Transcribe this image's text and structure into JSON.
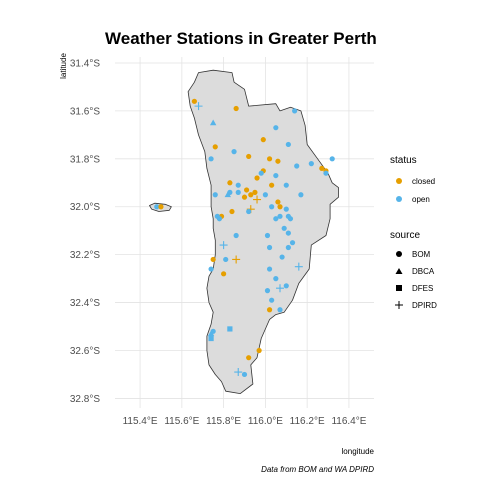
{
  "chart_data": {
    "type": "scatter",
    "title": "Weather Stations in Greater Perth",
    "xlabel": "longitude",
    "ylabel": "latitude",
    "caption": "Data from BOM and WA DPIRD",
    "xlim": [
      115.28,
      116.52
    ],
    "ylim": [
      -32.84,
      -31.375
    ],
    "x_ticks": [
      115.4,
      115.6,
      115.8,
      116.0,
      116.2,
      116.4
    ],
    "x_tick_labels": [
      "115.4°E",
      "115.6°E",
      "115.8°E",
      "116.0°E",
      "116.2°E",
      "116.4°E"
    ],
    "y_ticks": [
      -31.4,
      -31.6,
      -31.8,
      -32.0,
      -32.2,
      -32.4,
      -32.6,
      -32.8
    ],
    "y_tick_labels": [
      "31.4°S",
      "31.6°S",
      "31.8°S",
      "32.0°S",
      "32.2°S",
      "32.4°S",
      "32.6°S",
      "32.8°S"
    ],
    "grid": true,
    "colors": {
      "closed": "#E69F00",
      "open": "#56B4E9",
      "land": "#dcdcdc",
      "coast": "#333333"
    },
    "legends": [
      {
        "title": "status",
        "entries": [
          {
            "label": "closed",
            "color": "closed"
          },
          {
            "label": "open",
            "color": "open"
          }
        ]
      },
      {
        "title": "source",
        "entries": [
          {
            "label": "BOM",
            "shape": "circle"
          },
          {
            "label": "DBCA",
            "shape": "triangle"
          },
          {
            "label": "DFES",
            "shape": "square"
          },
          {
            "label": "DPIRD",
            "shape": "plus"
          }
        ]
      }
    ],
    "region_outline": [
      [
        115.68,
        -31.44
      ],
      [
        115.75,
        -31.43
      ],
      [
        115.84,
        -31.44
      ],
      [
        115.85,
        -31.48
      ],
      [
        115.9,
        -31.51
      ],
      [
        115.92,
        -31.58
      ],
      [
        116.05,
        -31.57
      ],
      [
        116.07,
        -31.6
      ],
      [
        116.12,
        -31.585
      ],
      [
        116.17,
        -31.6
      ],
      [
        116.19,
        -31.66
      ],
      [
        116.2,
        -31.74
      ],
      [
        116.25,
        -31.8
      ],
      [
        116.3,
        -31.86
      ],
      [
        116.32,
        -31.9
      ],
      [
        116.35,
        -31.92
      ],
      [
        116.35,
        -31.96
      ],
      [
        116.31,
        -31.99
      ],
      [
        116.31,
        -32.05
      ],
      [
        116.29,
        -32.12
      ],
      [
        116.22,
        -32.16
      ],
      [
        116.21,
        -32.26
      ],
      [
        116.16,
        -32.32
      ],
      [
        116.13,
        -32.39
      ],
      [
        116.09,
        -32.44
      ],
      [
        116.05,
        -32.45
      ],
      [
        116.02,
        -32.47
      ],
      [
        115.98,
        -32.55
      ],
      [
        115.96,
        -32.63
      ],
      [
        115.93,
        -32.66
      ],
      [
        115.94,
        -32.74
      ],
      [
        115.88,
        -32.78
      ],
      [
        115.81,
        -32.77
      ],
      [
        115.79,
        -32.73
      ],
      [
        115.76,
        -32.7
      ],
      [
        115.73,
        -32.66
      ],
      [
        115.72,
        -32.6
      ],
      [
        115.72,
        -32.54
      ],
      [
        115.74,
        -32.49
      ],
      [
        115.75,
        -32.44
      ],
      [
        115.73,
        -32.4
      ],
      [
        115.72,
        -32.34
      ],
      [
        115.73,
        -32.29
      ],
      [
        115.75,
        -32.26
      ],
      [
        115.76,
        -32.2
      ],
      [
        115.76,
        -32.14
      ],
      [
        115.75,
        -32.09
      ],
      [
        115.75,
        -32.05
      ],
      [
        115.74,
        -32.0
      ],
      [
        115.74,
        -31.96
      ],
      [
        115.74,
        -31.91
      ],
      [
        115.72,
        -31.84
      ],
      [
        115.71,
        -31.77
      ],
      [
        115.68,
        -31.7
      ],
      [
        115.66,
        -31.63
      ],
      [
        115.64,
        -31.58
      ],
      [
        115.63,
        -31.52
      ],
      [
        115.66,
        -31.48
      ]
    ],
    "island_outline": [
      [
        115.445,
        -31.995
      ],
      [
        115.47,
        -31.985
      ],
      [
        115.52,
        -31.99
      ],
      [
        115.55,
        -32.0
      ],
      [
        115.54,
        -32.015
      ],
      [
        115.49,
        -32.02
      ],
      [
        115.455,
        -32.01
      ]
    ],
    "stations": [
      {
        "x": 115.66,
        "y": -31.56,
        "status": "closed",
        "source": "BOM"
      },
      {
        "x": 115.68,
        "y": -31.58,
        "status": "open",
        "source": "DPIRD"
      },
      {
        "x": 115.86,
        "y": -31.59,
        "status": "closed",
        "source": "BOM"
      },
      {
        "x": 116.14,
        "y": -31.6,
        "status": "open",
        "source": "BOM"
      },
      {
        "x": 115.75,
        "y": -31.65,
        "status": "open",
        "source": "DBCA"
      },
      {
        "x": 116.05,
        "y": -31.67,
        "status": "open",
        "source": "BOM"
      },
      {
        "x": 115.76,
        "y": -31.75,
        "status": "closed",
        "source": "BOM"
      },
      {
        "x": 115.99,
        "y": -31.72,
        "status": "closed",
        "source": "BOM"
      },
      {
        "x": 116.11,
        "y": -31.74,
        "status": "open",
        "source": "BOM"
      },
      {
        "x": 115.74,
        "y": -31.8,
        "status": "open",
        "source": "BOM"
      },
      {
        "x": 115.85,
        "y": -31.77,
        "status": "open",
        "source": "BOM"
      },
      {
        "x": 115.92,
        "y": -31.79,
        "status": "closed",
        "source": "BOM"
      },
      {
        "x": 116.02,
        "y": -31.8,
        "status": "closed",
        "source": "BOM"
      },
      {
        "x": 116.06,
        "y": -31.81,
        "status": "closed",
        "source": "BOM"
      },
      {
        "x": 116.15,
        "y": -31.83,
        "status": "open",
        "source": "BOM"
      },
      {
        "x": 116.22,
        "y": -31.82,
        "status": "open",
        "source": "BOM"
      },
      {
        "x": 116.27,
        "y": -31.84,
        "status": "closed",
        "source": "BOM"
      },
      {
        "x": 116.29,
        "y": -31.85,
        "status": "closed",
        "source": "BOM"
      },
      {
        "x": 116.32,
        "y": -31.8,
        "status": "open",
        "source": "BOM"
      },
      {
        "x": 116.29,
        "y": -31.86,
        "status": "open",
        "source": "BOM"
      },
      {
        "x": 115.99,
        "y": -31.85,
        "status": "closed",
        "source": "BOM"
      },
      {
        "x": 115.96,
        "y": -31.88,
        "status": "closed",
        "source": "BOM"
      },
      {
        "x": 116.05,
        "y": -31.87,
        "status": "open",
        "source": "BOM"
      },
      {
        "x": 115.98,
        "y": -31.86,
        "status": "open",
        "source": "BOM"
      },
      {
        "x": 115.83,
        "y": -31.9,
        "status": "closed",
        "source": "BOM"
      },
      {
        "x": 115.87,
        "y": -31.91,
        "status": "open",
        "source": "BOM"
      },
      {
        "x": 116.03,
        "y": -31.91,
        "status": "closed",
        "source": "BOM"
      },
      {
        "x": 116.1,
        "y": -31.91,
        "status": "open",
        "source": "BOM"
      },
      {
        "x": 115.83,
        "y": -31.94,
        "status": "open",
        "source": "BOM"
      },
      {
        "x": 115.87,
        "y": -31.94,
        "status": "open",
        "source": "BOM"
      },
      {
        "x": 115.91,
        "y": -31.93,
        "status": "closed",
        "source": "BOM"
      },
      {
        "x": 115.93,
        "y": -31.95,
        "status": "closed",
        "source": "BOM"
      },
      {
        "x": 115.95,
        "y": -31.94,
        "status": "closed",
        "source": "BOM"
      },
      {
        "x": 115.9,
        "y": -31.96,
        "status": "closed",
        "source": "BOM"
      },
      {
        "x": 115.82,
        "y": -31.95,
        "status": "open",
        "source": "DBCA"
      },
      {
        "x": 115.76,
        "y": -31.95,
        "status": "open",
        "source": "BOM"
      },
      {
        "x": 116.0,
        "y": -31.95,
        "status": "open",
        "source": "BOM"
      },
      {
        "x": 116.17,
        "y": -31.95,
        "status": "open",
        "source": "BOM"
      },
      {
        "x": 115.96,
        "y": -31.97,
        "status": "closed",
        "source": "DPIRD"
      },
      {
        "x": 116.06,
        "y": -31.98,
        "status": "closed",
        "source": "BOM"
      },
      {
        "x": 116.07,
        "y": -32.0,
        "status": "closed",
        "source": "BOM"
      },
      {
        "x": 116.03,
        "y": -32.0,
        "status": "open",
        "source": "BOM"
      },
      {
        "x": 116.1,
        "y": -32.01,
        "status": "open",
        "source": "BOM"
      },
      {
        "x": 115.93,
        "y": -32.01,
        "status": "closed",
        "source": "DPIRD"
      },
      {
        "x": 115.92,
        "y": -32.02,
        "status": "open",
        "source": "BOM"
      },
      {
        "x": 115.84,
        "y": -32.02,
        "status": "closed",
        "source": "BOM"
      },
      {
        "x": 115.79,
        "y": -32.04,
        "status": "closed",
        "source": "BOM"
      },
      {
        "x": 115.77,
        "y": -32.04,
        "status": "open",
        "source": "BOM"
      },
      {
        "x": 115.78,
        "y": -32.05,
        "status": "open",
        "source": "BOM"
      },
      {
        "x": 116.07,
        "y": -32.04,
        "status": "open",
        "source": "BOM"
      },
      {
        "x": 116.05,
        "y": -32.05,
        "status": "open",
        "source": "BOM"
      },
      {
        "x": 116.11,
        "y": -32.04,
        "status": "open",
        "source": "BOM"
      },
      {
        "x": 116.12,
        "y": -32.05,
        "status": "open",
        "source": "BOM"
      },
      {
        "x": 115.48,
        "y": -32.0,
        "status": "open",
        "source": "BOM"
      },
      {
        "x": 115.5,
        "y": -32.0,
        "status": "closed",
        "source": "BOM"
      },
      {
        "x": 116.09,
        "y": -32.09,
        "status": "open",
        "source": "BOM"
      },
      {
        "x": 115.86,
        "y": -32.12,
        "status": "open",
        "source": "BOM"
      },
      {
        "x": 116.01,
        "y": -32.12,
        "status": "open",
        "source": "BOM"
      },
      {
        "x": 116.11,
        "y": -32.11,
        "status": "open",
        "source": "BOM"
      },
      {
        "x": 116.13,
        "y": -32.15,
        "status": "open",
        "source": "BOM"
      },
      {
        "x": 115.8,
        "y": -32.16,
        "status": "open",
        "source": "DPIRD"
      },
      {
        "x": 116.02,
        "y": -32.17,
        "status": "open",
        "source": "BOM"
      },
      {
        "x": 116.11,
        "y": -32.17,
        "status": "open",
        "source": "BOM"
      },
      {
        "x": 115.75,
        "y": -32.22,
        "status": "closed",
        "source": "BOM"
      },
      {
        "x": 115.86,
        "y": -32.22,
        "status": "closed",
        "source": "DPIRD"
      },
      {
        "x": 115.81,
        "y": -32.22,
        "status": "open",
        "source": "BOM"
      },
      {
        "x": 116.08,
        "y": -32.21,
        "status": "open",
        "source": "BOM"
      },
      {
        "x": 115.74,
        "y": -32.26,
        "status": "open",
        "source": "BOM"
      },
      {
        "x": 116.02,
        "y": -32.26,
        "status": "open",
        "source": "BOM"
      },
      {
        "x": 116.16,
        "y": -32.25,
        "status": "open",
        "source": "DPIRD"
      },
      {
        "x": 115.8,
        "y": -32.28,
        "status": "closed",
        "source": "BOM"
      },
      {
        "x": 116.05,
        "y": -32.3,
        "status": "open",
        "source": "BOM"
      },
      {
        "x": 116.1,
        "y": -32.33,
        "status": "open",
        "source": "BOM"
      },
      {
        "x": 116.07,
        "y": -32.34,
        "status": "open",
        "source": "DPIRD"
      },
      {
        "x": 116.01,
        "y": -32.35,
        "status": "open",
        "source": "BOM"
      },
      {
        "x": 116.03,
        "y": -32.39,
        "status": "open",
        "source": "BOM"
      },
      {
        "x": 116.02,
        "y": -32.43,
        "status": "closed",
        "source": "BOM"
      },
      {
        "x": 116.07,
        "y": -32.43,
        "status": "open",
        "source": "BOM"
      },
      {
        "x": 115.83,
        "y": -32.51,
        "status": "open",
        "source": "DFES"
      },
      {
        "x": 115.75,
        "y": -32.52,
        "status": "open",
        "source": "BOM"
      },
      {
        "x": 115.74,
        "y": -32.53,
        "status": "open",
        "source": "DBCA"
      },
      {
        "x": 115.74,
        "y": -32.55,
        "status": "open",
        "source": "DFES"
      },
      {
        "x": 115.97,
        "y": -32.6,
        "status": "closed",
        "source": "BOM"
      },
      {
        "x": 115.92,
        "y": -32.63,
        "status": "closed",
        "source": "BOM"
      },
      {
        "x": 115.87,
        "y": -32.69,
        "status": "open",
        "source": "DPIRD"
      },
      {
        "x": 115.9,
        "y": -32.7,
        "status": "open",
        "source": "BOM"
      }
    ]
  }
}
